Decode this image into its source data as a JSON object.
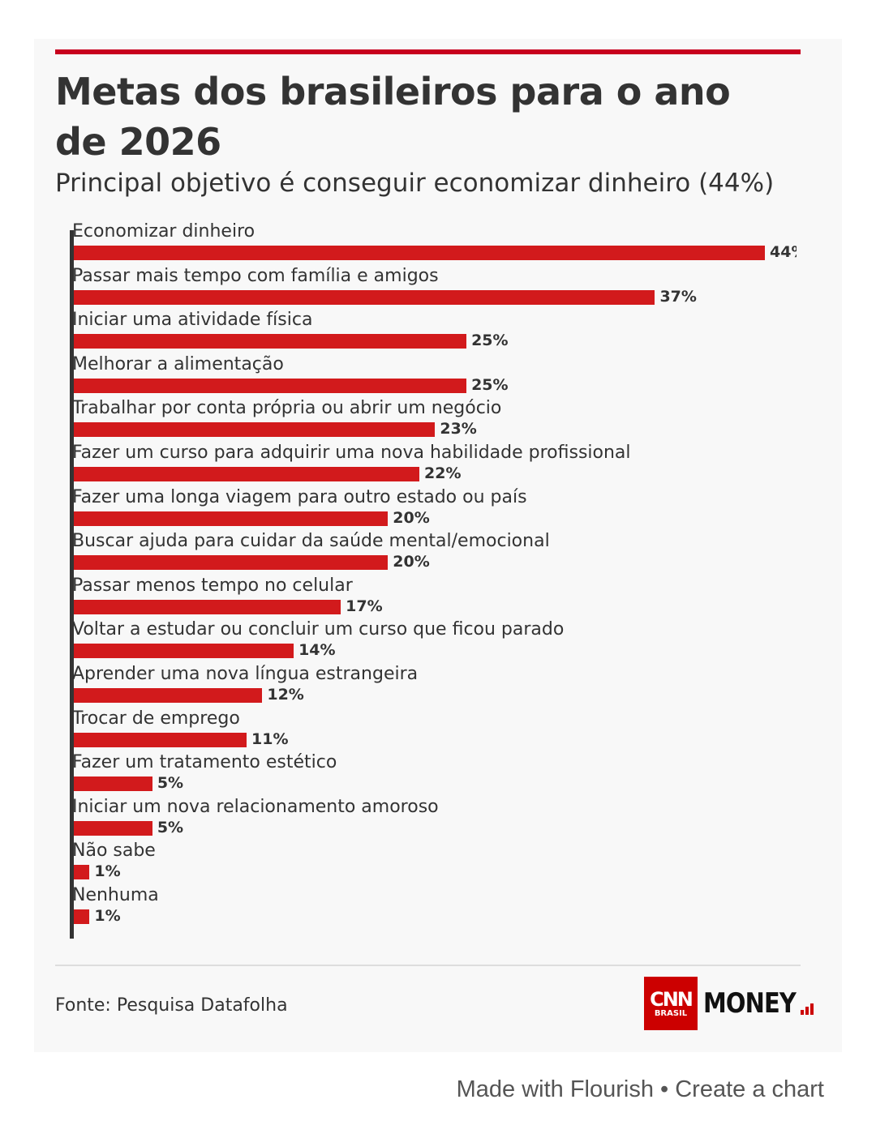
{
  "chart_data": {
    "type": "bar",
    "orientation": "horizontal",
    "title": "Metas dos brasileiros para o ano de 2026",
    "subtitle": "Principal objetivo é conseguir economizar dinheiro (44%)",
    "categories": [
      "Economizar dinheiro",
      "Passar mais tempo com família e amigos",
      "Iniciar uma atividade física",
      "Melhorar a alimentação",
      "Trabalhar por conta própria ou abrir um negócio",
      "Fazer um curso para adquirir uma nova habilidade profissional",
      "Fazer uma longa viagem para outro estado ou país",
      "Buscar ajuda para cuidar da saúde mental/emocional",
      "Passar menos tempo no celular",
      "Voltar a estudar ou concluir um curso que ficou parado",
      "Aprender uma nova língua estrangeira",
      "Trocar de emprego",
      "Fazer um tratamento estético",
      "Iniciar um nova relacionamento amoroso",
      "Não sabe",
      "Nenhuma"
    ],
    "values": [
      44,
      37,
      25,
      25,
      23,
      22,
      20,
      20,
      17,
      14,
      12,
      11,
      5,
      5,
      1,
      1
    ],
    "value_suffix": "%",
    "xlim": [
      0,
      44
    ],
    "grid": false,
    "bar_color": "#d21a1c"
  },
  "header": {
    "accent_color": "#c8001e"
  },
  "footer": {
    "source": "Fonte: Pesquisa Datafolha",
    "logo": {
      "cnn": "CNN",
      "brasil": "BRASIL",
      "money": "MONEY"
    },
    "flourish": "Made with Flourish • Create a chart"
  }
}
